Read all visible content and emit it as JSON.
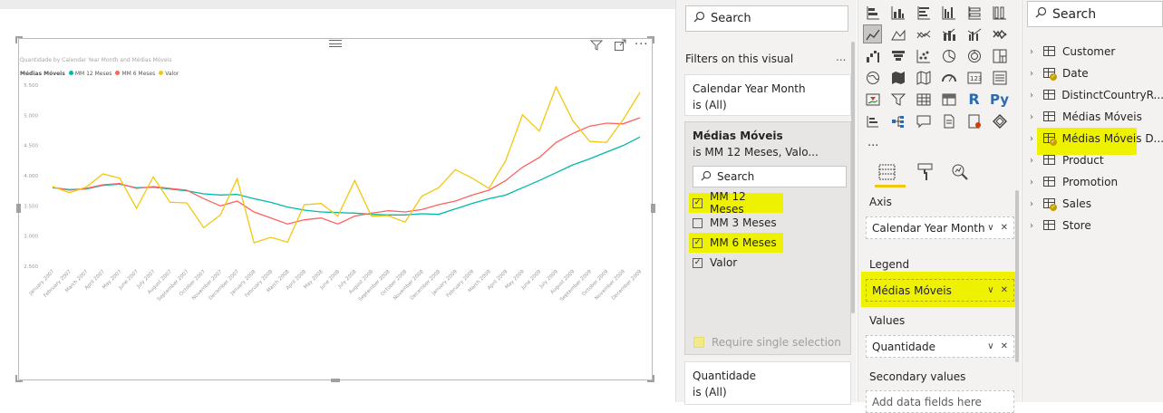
{
  "chart": {
    "title": "Quantidade by Calendar Year Month and Médias Móveis",
    "legend_title": "Médias Móveis",
    "toolbar_icons": [
      "filter-icon",
      "focus-mode-icon",
      "more-options-icon"
    ]
  },
  "chart_data": {
    "type": "line",
    "title": "Quantidade by Calendar Year Month and Médias Móveis",
    "xlabel": "",
    "ylabel": "",
    "ylim": [
      2500,
      5500
    ],
    "yticks": [
      "5.500",
      "5.000",
      "4.500",
      "4.000",
      "3.500",
      "3.000",
      "2.500"
    ],
    "ytick_values": [
      5500,
      5000,
      4500,
      4000,
      3500,
      3000,
      2500
    ],
    "legend_position": "top-left",
    "grid": false,
    "categories": [
      "January 2007",
      "February 2007",
      "March 2007",
      "April 2007",
      "May 2007",
      "June 2007",
      "July 2007",
      "August 2007",
      "September 2007",
      "October 2007",
      "November 2007",
      "December 2007",
      "January 2008",
      "February 2008",
      "March 2008",
      "April 2008",
      "May 2008",
      "June 2008",
      "July 2008",
      "August 2008",
      "September 2008",
      "October 2008",
      "November 2008",
      "December 2008",
      "January 2009",
      "February 2009",
      "March 2009",
      "April 2009",
      "May 2009",
      "June 2009",
      "July 2009",
      "August 2009",
      "September 2009",
      "October 2009",
      "November 2009",
      "December 2009"
    ],
    "x_tick_labels": [
      "January 2007",
      "February 2007",
      "March 2007",
      "April 2007",
      "May 2007",
      "June 2007",
      "July 2007",
      "August 2007",
      "September 2007",
      "October 2007",
      "November 2007",
      "December 2007",
      "January 2008",
      "February 2008",
      "March 2008",
      "April 2008",
      "May 2008",
      "June 2008",
      "July 2008",
      "August 2008",
      "September 2008",
      "October 2008",
      "November 2008",
      "December 2008",
      "January 2009",
      "February 2009",
      "March 2009",
      "April 2009",
      "May 2009",
      "June 2009",
      "July 2009",
      "August 2009",
      "September 2009",
      "October 2009",
      "November 2009",
      "December 2009"
    ],
    "series": [
      {
        "name": "MM 12 Meses",
        "color": "#01b8aa",
        "values": [
          3800,
          3770,
          3780,
          3840,
          3860,
          3800,
          3810,
          3780,
          3750,
          3700,
          3680,
          3690,
          3620,
          3560,
          3480,
          3430,
          3400,
          3390,
          3380,
          3360,
          3350,
          3350,
          3370,
          3360,
          3450,
          3540,
          3620,
          3680,
          3800,
          3920,
          4050,
          4180,
          4280,
          4390,
          4500,
          4640
        ]
      },
      {
        "name": "MM 6 Meses",
        "color": "#fd625e",
        "values": [
          3810,
          3760,
          3790,
          3850,
          3870,
          3790,
          3820,
          3790,
          3760,
          3620,
          3500,
          3580,
          3400,
          3300,
          3200,
          3270,
          3300,
          3200,
          3330,
          3380,
          3420,
          3400,
          3440,
          3520,
          3580,
          3680,
          3760,
          3920,
          4140,
          4300,
          4550,
          4700,
          4820,
          4870,
          4860,
          4960
        ]
      },
      {
        "name": "Valor",
        "color": "#f2c80f",
        "values": [
          3820,
          3720,
          3810,
          4030,
          3960,
          3460,
          3980,
          3560,
          3550,
          3140,
          3350,
          3950,
          2890,
          2980,
          2900,
          3520,
          3540,
          3330,
          3920,
          3330,
          3340,
          3230,
          3660,
          3800,
          4100,
          3960,
          3790,
          4250,
          5010,
          4740,
          5470,
          4910,
          4570,
          4550,
          4930,
          5380
        ]
      }
    ]
  },
  "filters": {
    "search_placeholder": "Search",
    "header": "Filters on this visual",
    "more": "...",
    "cards": [
      {
        "title": "Calendar Year Month",
        "value": "is (All)"
      },
      {
        "title": "Médias Móveis",
        "value": "is MM 12 Meses, Valo..."
      },
      {
        "title": "Quantidade",
        "value": "is (All)"
      }
    ],
    "inner_search": "Search",
    "options": [
      {
        "label": "MM 12 Meses",
        "checked": true
      },
      {
        "label": "MM 3 Meses",
        "checked": false
      },
      {
        "label": "MM 6 Meses",
        "checked": true
      },
      {
        "label": "Valor",
        "checked": true
      }
    ],
    "require_single": "Require single selection"
  },
  "visualizations": {
    "wells": [
      {
        "label": "Axis",
        "value": "Calendar Year Month"
      },
      {
        "label": "Legend",
        "value": "Médias Móveis"
      },
      {
        "label": "Values",
        "value": "Quantidade"
      },
      {
        "label": "Secondary values",
        "value": "Add data fields here"
      }
    ],
    "more": "...",
    "r_icon": "R",
    "py_icon": "Py"
  },
  "fields": {
    "search_placeholder": "Search",
    "tables": [
      {
        "name": "Customer",
        "has_check": false
      },
      {
        "name": "Date",
        "has_check": true
      },
      {
        "name": "DistinctCountryR...",
        "has_check": false
      },
      {
        "name": "Médias Móveis",
        "has_check": false
      },
      {
        "name": "Médias Móveis D...",
        "has_check": true
      },
      {
        "name": "Product",
        "has_check": false
      },
      {
        "name": "Promotion",
        "has_check": false
      },
      {
        "name": "Sales",
        "has_check": true
      },
      {
        "name": "Store",
        "has_check": false
      }
    ]
  },
  "colors": {
    "accent": "#f2c80f",
    "highlight": "#eef200",
    "teal": "#01b8aa",
    "red": "#fd625e"
  }
}
